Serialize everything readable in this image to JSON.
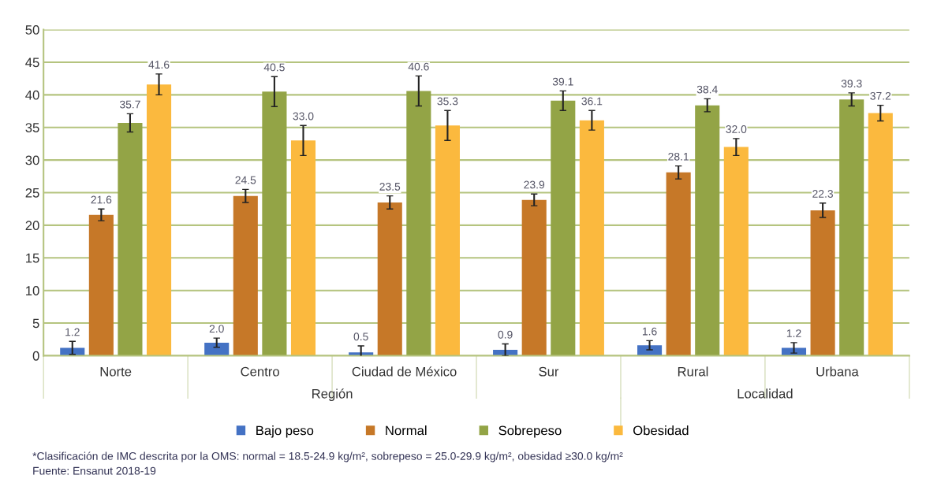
{
  "chart_data": {
    "type": "bar",
    "categories": [
      "Norte",
      "Centro",
      "Ciudad de México",
      "Sur",
      "Rural",
      "Urbana"
    ],
    "series": [
      {
        "name": "Bajo peso",
        "color": "#4472c4",
        "values": [
          1.2,
          2.0,
          0.5,
          0.9,
          1.6,
          1.2
        ],
        "errors": [
          1.0,
          0.7,
          1.0,
          0.9,
          0.7,
          0.8
        ],
        "value_labels": [
          "1.2",
          "2.0",
          "0.5",
          "0.9",
          "1.6",
          "1.2"
        ]
      },
      {
        "name": "Normal",
        "color": "#c67828",
        "values": [
          21.6,
          24.5,
          23.5,
          23.9,
          28.1,
          22.3
        ],
        "errors": [
          0.9,
          1.0,
          1.0,
          0.9,
          1.0,
          1.1
        ],
        "value_labels": [
          "21.6",
          "24.5",
          "23.5",
          "23.9",
          "28.1",
          "22.3"
        ]
      },
      {
        "name": "Sobrepeso",
        "color": "#93a446",
        "values": [
          35.7,
          40.5,
          40.6,
          39.1,
          38.4,
          39.3
        ],
        "errors": [
          1.4,
          2.3,
          2.3,
          1.5,
          1.0,
          1.0
        ],
        "value_labels": [
          "35.7",
          "40.5",
          "40.6",
          "39.1",
          "38.4",
          "39.3"
        ]
      },
      {
        "name": "Obesidad",
        "color": "#fbb93e",
        "values": [
          41.6,
          33.0,
          35.3,
          36.1,
          32.0,
          37.2
        ],
        "errors": [
          1.6,
          2.3,
          2.3,
          1.5,
          1.3,
          1.2
        ],
        "value_labels": [
          "41.6",
          "33.0",
          "35.3",
          "36.1",
          "32.0",
          "37.2"
        ]
      }
    ],
    "ylim": [
      0,
      50
    ],
    "yticks": [
      0,
      5,
      10,
      15,
      20,
      25,
      30,
      35,
      40,
      45,
      50
    ],
    "grid": "y",
    "legend": "bottom",
    "annotations": [
      {
        "text": "Región"
      },
      {
        "text": "Localidad"
      },
      "*Clasificación de IMC descrita por la OMS: normal = 18.5-24.9 kg/m², sobrepeso = 25.0-29.9 kg/m², obesidad ≥30.0 kg/m²",
      "Fuente: Ensanut 2018-19"
    ]
  }
}
